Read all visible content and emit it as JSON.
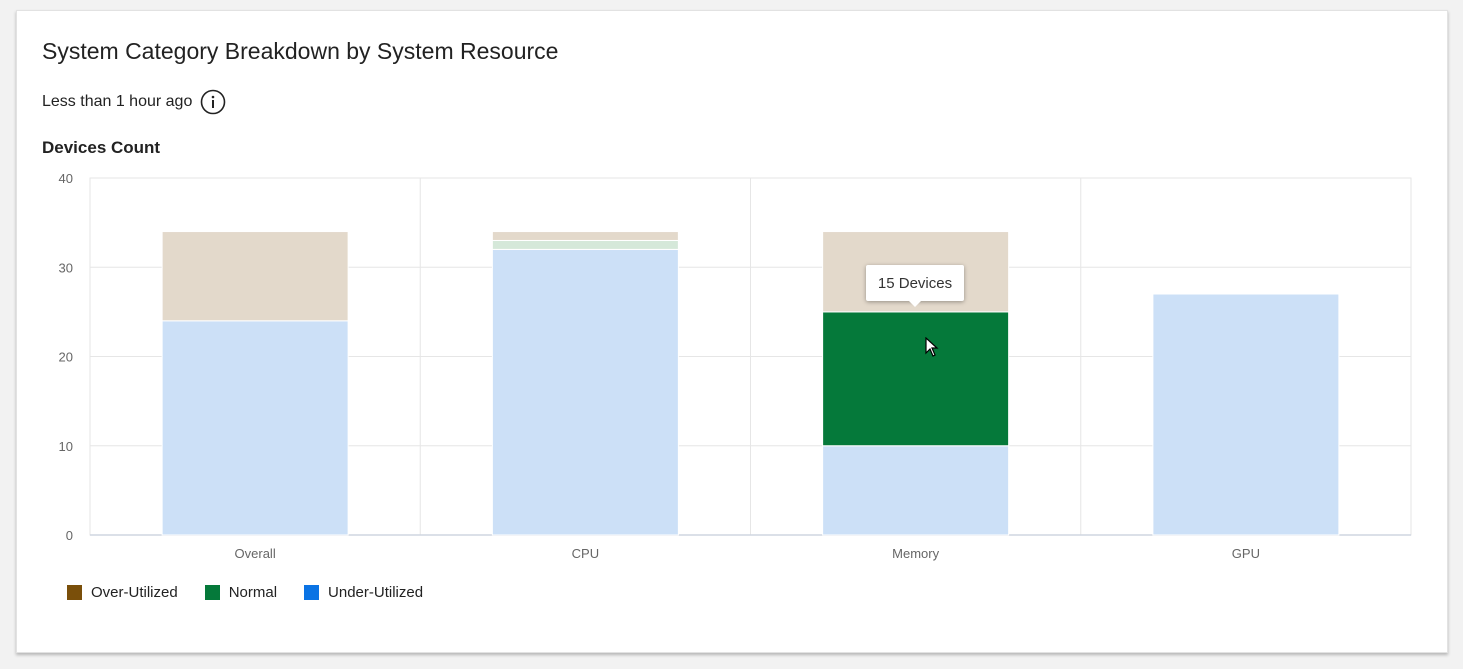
{
  "card": {
    "title": "System Category Breakdown by System Resource",
    "subtitle": "Less than 1 hour ago",
    "info_icon": "info-icon"
  },
  "tooltip": {
    "text": "15 Devices"
  },
  "colors": {
    "over_utilized_bar": "#e3d9cb",
    "normal_bar": "#05793a",
    "normal_bar_light": "#d5e8d9",
    "under_utilized_bar": "#cce0f7",
    "over_utilized_legend": "#7a4f0a",
    "normal_legend": "#05793a",
    "under_utilized_legend": "#0a73e4",
    "grid": "#e6e6e6",
    "axis_text": "#666666"
  },
  "chart_data": {
    "type": "bar",
    "stacked": true,
    "title": "",
    "ylabel": "Devices Count",
    "xlabel": "",
    "ylim": [
      0,
      40
    ],
    "yticks": [
      0,
      10,
      20,
      30,
      40
    ],
    "categories": [
      "Overall",
      "CPU",
      "Memory",
      "GPU"
    ],
    "series": [
      {
        "name": "Under-Utilized",
        "values": [
          24,
          32,
          10,
          27
        ]
      },
      {
        "name": "Normal",
        "values": [
          0,
          1,
          15,
          0
        ]
      },
      {
        "name": "Over-Utilized",
        "values": [
          10,
          1,
          9,
          0
        ]
      }
    ],
    "grid": true,
    "legend_position": "bottom-left"
  }
}
